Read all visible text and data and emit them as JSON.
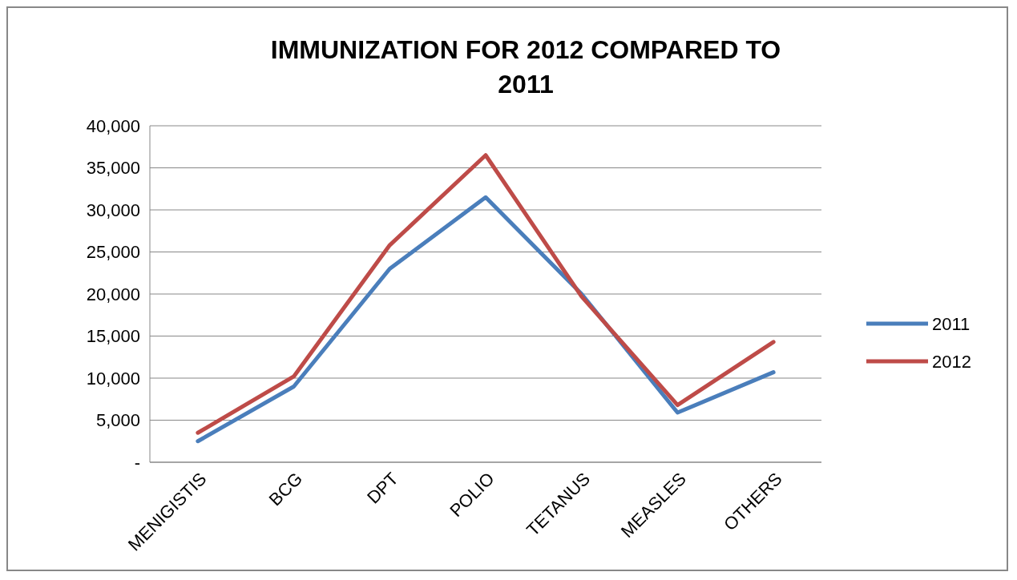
{
  "chart_data": {
    "type": "line",
    "title": "IMMUNIZATION FOR 2012 COMPARED TO 2011",
    "categories": [
      "MENIGISTIS",
      "BCG",
      "DPT",
      "POLIO",
      "TETANUS",
      "MEASLES",
      "OTHERS"
    ],
    "series": [
      {
        "name": "2011",
        "color": "#4a7ebb",
        "values": [
          2500,
          9000,
          23000,
          31500,
          20000,
          5900,
          10700
        ]
      },
      {
        "name": "2012",
        "color": "#be4b48",
        "values": [
          3500,
          10200,
          25800,
          36500,
          19700,
          6800,
          14300
        ]
      }
    ],
    "ylim": [
      0,
      40000
    ],
    "yticks": [
      {
        "value": 0,
        "label": "-"
      },
      {
        "value": 5000,
        "label": "5,000"
      },
      {
        "value": 10000,
        "label": "10,000"
      },
      {
        "value": 15000,
        "label": "15,000"
      },
      {
        "value": 20000,
        "label": "20,000"
      },
      {
        "value": 25000,
        "label": "25,000"
      },
      {
        "value": 30000,
        "label": "30,000"
      },
      {
        "value": 35000,
        "label": "35,000"
      },
      {
        "value": 40000,
        "label": "40,000"
      }
    ],
    "grid": "y",
    "legend": "right",
    "marker": "none",
    "line_style": "solid"
  }
}
